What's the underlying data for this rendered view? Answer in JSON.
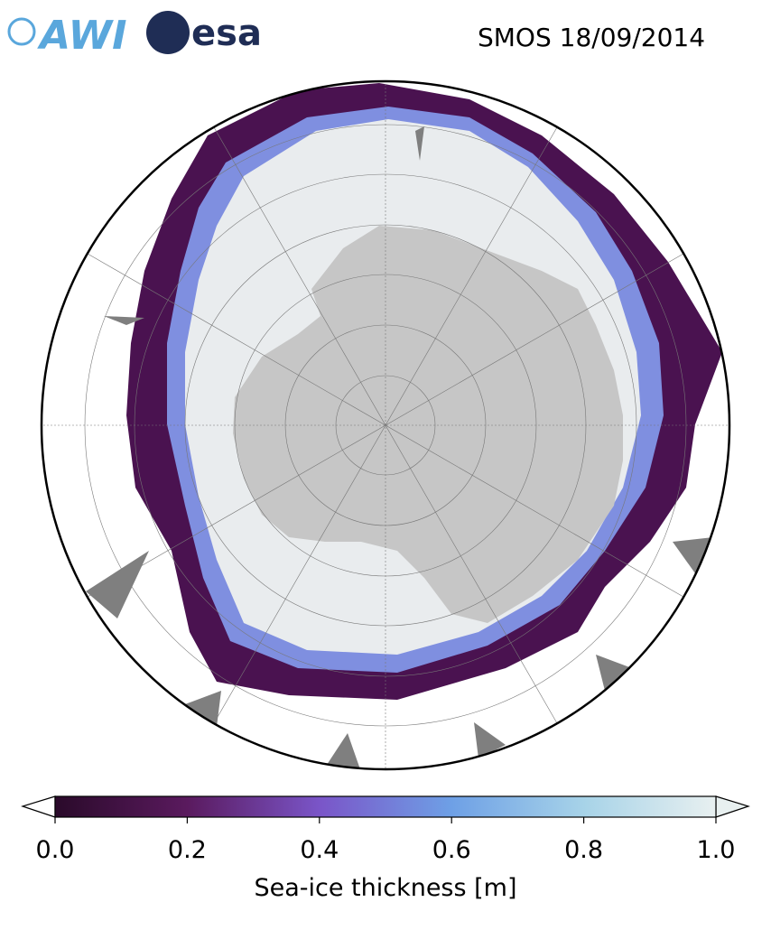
{
  "logos": {
    "awi": "AWI",
    "esa": "esa"
  },
  "title": "SMOS 18/09/2014",
  "colorbar": {
    "label": "Sea-ice thickness [m]",
    "lim": [
      0,
      1
    ],
    "ticks": [
      {
        "value": 0,
        "label": "0.0"
      },
      0.2,
      0.4,
      0.6,
      0.8,
      {
        "value": 1,
        "label": "1.0"
      }
    ],
    "colors": [
      "#2a0a2a",
      "#5a1a5e",
      "#7a55c8",
      "#6ea0e6",
      "#a7d3e8",
      "#e8f0f0"
    ]
  }
}
